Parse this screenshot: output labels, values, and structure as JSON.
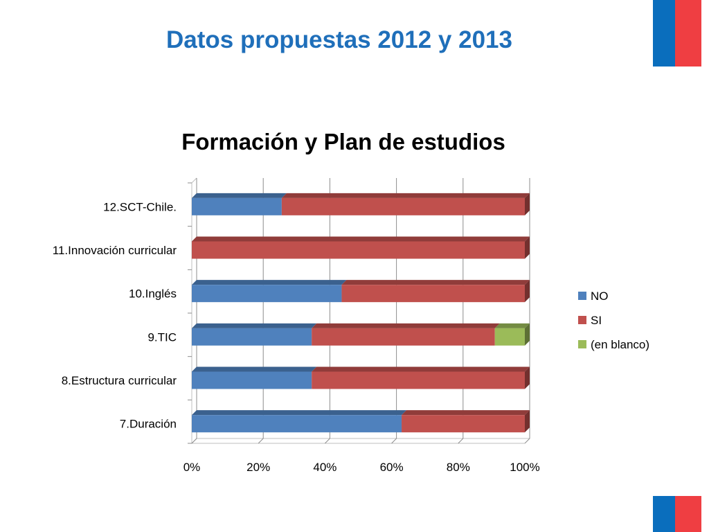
{
  "slide": {
    "title": "Datos propuestas 2012 y 2013"
  },
  "colors": {
    "flag_blue": "#0A6EBD",
    "flag_red": "#EF3E42",
    "title": "#1F6FBA",
    "NO": "#4F81BD",
    "SI": "#C0504D",
    "en_blanco": "#9BBB59"
  },
  "chart_data": {
    "type": "bar",
    "orientation": "horizontal",
    "stacked": "100%",
    "three_d": true,
    "title": "Formación y Plan de estudios",
    "xlabel": "",
    "ylabel": "",
    "xlim": [
      0,
      100
    ],
    "x_ticks": [
      "0%",
      "20%",
      "40%",
      "60%",
      "80%",
      "100%"
    ],
    "grid": true,
    "legend": "right",
    "categories": [
      "12.SCT-Chile.",
      "11.Innovación curricular",
      "10.Inglés",
      "9.TIC",
      "8.Estructura curricular",
      "7.Duración"
    ],
    "series": [
      {
        "name": "NO",
        "color": "#4F81BD",
        "values": [
          27,
          0,
          45,
          36,
          36,
          63
        ]
      },
      {
        "name": "SI",
        "color": "#C0504D",
        "values": [
          73,
          100,
          55,
          55,
          64,
          37
        ]
      },
      {
        "name": "(en blanco)",
        "color": "#9BBB59",
        "values": [
          0,
          0,
          0,
          9,
          0,
          0
        ]
      }
    ]
  }
}
